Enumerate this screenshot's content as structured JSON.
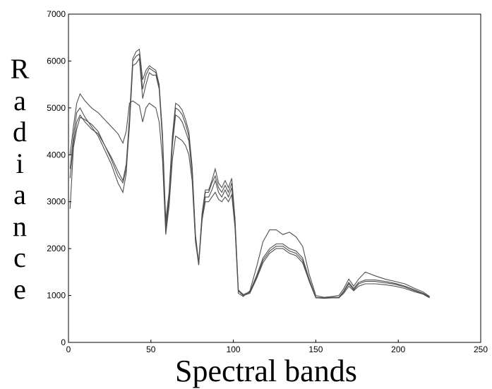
{
  "chart_data": {
    "type": "line",
    "xlabel": "Spectral bands",
    "ylabel": "Radiance",
    "xlim": [
      0,
      250
    ],
    "ylim": [
      0,
      7000
    ],
    "xticks": [
      "0",
      "50",
      "100",
      "150",
      "200",
      "250"
    ],
    "yticks": [
      "0",
      "1000",
      "2000",
      "3000",
      "4000",
      "5000",
      "6000",
      "7000"
    ],
    "grid": false,
    "line_color": "#505050",
    "series": [
      {
        "values": [
          [
            1,
            2850
          ],
          [
            3,
            4150
          ],
          [
            5,
            4550
          ],
          [
            7,
            4800
          ],
          [
            10,
            4750
          ],
          [
            14,
            4650
          ],
          [
            18,
            4500
          ],
          [
            22,
            4200
          ],
          [
            26,
            3900
          ],
          [
            30,
            3550
          ],
          [
            33,
            3400
          ],
          [
            35,
            3700
          ],
          [
            37,
            4600
          ],
          [
            39,
            5900
          ],
          [
            41,
            5950
          ],
          [
            43,
            6050
          ],
          [
            45,
            5200
          ],
          [
            47,
            5500
          ],
          [
            49,
            5750
          ],
          [
            51,
            5700
          ],
          [
            53,
            5700
          ],
          [
            55,
            5400
          ],
          [
            57,
            4300
          ],
          [
            59,
            2400
          ],
          [
            61,
            3000
          ],
          [
            63,
            4200
          ],
          [
            65,
            4850
          ],
          [
            67,
            4800
          ],
          [
            69,
            4700
          ],
          [
            71,
            4500
          ],
          [
            73,
            4300
          ],
          [
            75,
            3600
          ],
          [
            77,
            2200
          ],
          [
            79,
            1700
          ],
          [
            81,
            2600
          ],
          [
            83,
            3100
          ],
          [
            85,
            3100
          ],
          [
            87,
            3250
          ],
          [
            89,
            3450
          ],
          [
            91,
            3200
          ],
          [
            93,
            3100
          ],
          [
            95,
            3250
          ],
          [
            97,
            3100
          ],
          [
            99,
            3300
          ],
          [
            101,
            2500
          ],
          [
            103,
            1100
          ],
          [
            106,
            1000
          ],
          [
            110,
            1050
          ],
          [
            114,
            1350
          ],
          [
            118,
            1700
          ],
          [
            122,
            1900
          ],
          [
            126,
            2000
          ],
          [
            130,
            2000
          ],
          [
            134,
            1900
          ],
          [
            138,
            1850
          ],
          [
            142,
            1700
          ],
          [
            146,
            1300
          ],
          [
            150,
            950
          ],
          [
            155,
            950
          ],
          [
            160,
            950
          ],
          [
            164,
            950
          ],
          [
            167,
            1050
          ],
          [
            170,
            1200
          ],
          [
            173,
            1100
          ],
          [
            176,
            1200
          ],
          [
            180,
            1250
          ],
          [
            186,
            1250
          ],
          [
            192,
            1230
          ],
          [
            198,
            1200
          ],
          [
            204,
            1150
          ],
          [
            210,
            1080
          ],
          [
            215,
            1030
          ],
          [
            219,
            950
          ]
        ]
      },
      {
        "values": [
          [
            1,
            3700
          ],
          [
            3,
            4400
          ],
          [
            5,
            4900
          ],
          [
            7,
            5000
          ],
          [
            10,
            4800
          ],
          [
            14,
            4600
          ],
          [
            18,
            4400
          ],
          [
            22,
            4100
          ],
          [
            26,
            3800
          ],
          [
            30,
            3400
          ],
          [
            33,
            3200
          ],
          [
            35,
            3600
          ],
          [
            37,
            4700
          ],
          [
            39,
            6000
          ],
          [
            41,
            6100
          ],
          [
            43,
            6150
          ],
          [
            45,
            5400
          ],
          [
            47,
            5700
          ],
          [
            49,
            5850
          ],
          [
            51,
            5800
          ],
          [
            53,
            5750
          ],
          [
            55,
            5450
          ],
          [
            57,
            4400
          ],
          [
            59,
            2500
          ],
          [
            61,
            3100
          ],
          [
            63,
            4300
          ],
          [
            65,
            5000
          ],
          [
            67,
            4950
          ],
          [
            69,
            4850
          ],
          [
            71,
            4650
          ],
          [
            73,
            4400
          ],
          [
            75,
            3700
          ],
          [
            77,
            2250
          ],
          [
            79,
            1650
          ],
          [
            81,
            2700
          ],
          [
            83,
            3200
          ],
          [
            85,
            3200
          ],
          [
            87,
            3400
          ],
          [
            89,
            3550
          ],
          [
            91,
            3300
          ],
          [
            93,
            3200
          ],
          [
            95,
            3350
          ],
          [
            97,
            3200
          ],
          [
            99,
            3400
          ],
          [
            101,
            2600
          ],
          [
            103,
            1100
          ],
          [
            106,
            1000
          ],
          [
            110,
            1060
          ],
          [
            114,
            1380
          ],
          [
            118,
            1750
          ],
          [
            122,
            1950
          ],
          [
            126,
            2050
          ],
          [
            130,
            2050
          ],
          [
            134,
            1950
          ],
          [
            138,
            1900
          ],
          [
            142,
            1750
          ],
          [
            146,
            1300
          ],
          [
            150,
            950
          ],
          [
            155,
            940
          ],
          [
            160,
            950
          ],
          [
            164,
            950
          ],
          [
            167,
            1080
          ],
          [
            170,
            1250
          ],
          [
            173,
            1120
          ],
          [
            176,
            1250
          ],
          [
            180,
            1300
          ],
          [
            186,
            1300
          ],
          [
            192,
            1270
          ],
          [
            198,
            1240
          ],
          [
            204,
            1180
          ],
          [
            210,
            1100
          ],
          [
            215,
            1040
          ],
          [
            219,
            960
          ]
        ]
      },
      {
        "values": [
          [
            1,
            4000
          ],
          [
            3,
            4600
          ],
          [
            5,
            5100
          ],
          [
            7,
            5300
          ],
          [
            10,
            5150
          ],
          [
            14,
            5000
          ],
          [
            18,
            4900
          ],
          [
            22,
            4750
          ],
          [
            26,
            4600
          ],
          [
            30,
            4450
          ],
          [
            33,
            4250
          ],
          [
            35,
            4500
          ],
          [
            37,
            5100
          ],
          [
            39,
            5150
          ],
          [
            41,
            5100
          ],
          [
            43,
            5050
          ],
          [
            45,
            4700
          ],
          [
            47,
            5000
          ],
          [
            49,
            5100
          ],
          [
            51,
            5050
          ],
          [
            53,
            5000
          ],
          [
            55,
            4700
          ],
          [
            57,
            3900
          ],
          [
            59,
            2300
          ],
          [
            61,
            2900
          ],
          [
            63,
            3900
          ],
          [
            65,
            4400
          ],
          [
            67,
            4350
          ],
          [
            69,
            4300
          ],
          [
            71,
            4200
          ],
          [
            73,
            4000
          ],
          [
            75,
            3450
          ],
          [
            77,
            2150
          ],
          [
            79,
            1650
          ],
          [
            81,
            2600
          ],
          [
            83,
            3000
          ],
          [
            85,
            3000
          ],
          [
            87,
            3100
          ],
          [
            89,
            3200
          ],
          [
            91,
            3050
          ],
          [
            93,
            3000
          ],
          [
            95,
            3100
          ],
          [
            97,
            3000
          ],
          [
            99,
            3150
          ],
          [
            101,
            2450
          ],
          [
            103,
            1050
          ],
          [
            106,
            980
          ],
          [
            110,
            1100
          ],
          [
            114,
            1600
          ],
          [
            118,
            2150
          ],
          [
            122,
            2400
          ],
          [
            126,
            2400
          ],
          [
            130,
            2300
          ],
          [
            134,
            2350
          ],
          [
            138,
            2250
          ],
          [
            142,
            2050
          ],
          [
            146,
            1450
          ],
          [
            150,
            1000
          ],
          [
            155,
            960
          ],
          [
            160,
            980
          ],
          [
            164,
            1000
          ],
          [
            167,
            1150
          ],
          [
            170,
            1350
          ],
          [
            173,
            1200
          ],
          [
            176,
            1350
          ],
          [
            180,
            1500
          ],
          [
            186,
            1420
          ],
          [
            192,
            1350
          ],
          [
            198,
            1300
          ],
          [
            204,
            1250
          ],
          [
            210,
            1150
          ],
          [
            215,
            1080
          ],
          [
            219,
            980
          ]
        ]
      },
      {
        "values": [
          [
            1,
            3500
          ],
          [
            3,
            4250
          ],
          [
            5,
            4700
          ],
          [
            7,
            4850
          ],
          [
            10,
            4700
          ],
          [
            14,
            4550
          ],
          [
            18,
            4450
          ],
          [
            22,
            4200
          ],
          [
            26,
            3950
          ],
          [
            30,
            3650
          ],
          [
            33,
            3450
          ],
          [
            35,
            3800
          ],
          [
            37,
            4800
          ],
          [
            39,
            6050
          ],
          [
            41,
            6200
          ],
          [
            43,
            6250
          ],
          [
            45,
            5600
          ],
          [
            47,
            5800
          ],
          [
            49,
            5900
          ],
          [
            51,
            5850
          ],
          [
            53,
            5800
          ],
          [
            55,
            5500
          ],
          [
            57,
            4450
          ],
          [
            59,
            2600
          ],
          [
            61,
            3200
          ],
          [
            63,
            4400
          ],
          [
            65,
            5100
          ],
          [
            67,
            5050
          ],
          [
            69,
            4950
          ],
          [
            71,
            4750
          ],
          [
            73,
            4500
          ],
          [
            75,
            3750
          ],
          [
            77,
            2300
          ],
          [
            79,
            1700
          ],
          [
            81,
            2750
          ],
          [
            83,
            3250
          ],
          [
            85,
            3250
          ],
          [
            87,
            3450
          ],
          [
            89,
            3700
          ],
          [
            91,
            3400
          ],
          [
            93,
            3300
          ],
          [
            95,
            3450
          ],
          [
            97,
            3300
          ],
          [
            99,
            3500
          ],
          [
            101,
            2650
          ],
          [
            103,
            1120
          ],
          [
            106,
            1020
          ],
          [
            110,
            1080
          ],
          [
            114,
            1420
          ],
          [
            118,
            1800
          ],
          [
            122,
            2000
          ],
          [
            126,
            2100
          ],
          [
            130,
            2100
          ],
          [
            134,
            2000
          ],
          [
            138,
            1950
          ],
          [
            142,
            1800
          ],
          [
            146,
            1350
          ],
          [
            150,
            960
          ],
          [
            155,
            950
          ],
          [
            160,
            960
          ],
          [
            164,
            960
          ],
          [
            167,
            1100
          ],
          [
            170,
            1280
          ],
          [
            173,
            1150
          ],
          [
            176,
            1280
          ],
          [
            180,
            1330
          ],
          [
            186,
            1330
          ],
          [
            192,
            1300
          ],
          [
            198,
            1260
          ],
          [
            204,
            1200
          ],
          [
            210,
            1120
          ],
          [
            215,
            1050
          ],
          [
            219,
            970
          ]
        ]
      }
    ]
  }
}
